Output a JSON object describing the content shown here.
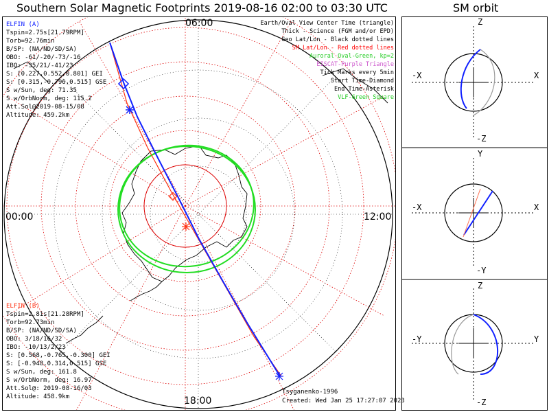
{
  "title": "Southern Solar Magnetic Footprints 2019-08-16 02:00 to 03:30 UTC",
  "orbit_title": "SM orbit",
  "hour_labels": {
    "top": "06:00",
    "left": "00:00",
    "right": "12:00",
    "bottom": "18:00"
  },
  "probe_a": {
    "header": "ELFIN (A)",
    "lines": [
      "Tspin=2.75s[21.79RPM]",
      "Torb=92.76min",
      "B/SP: (NA/ND/SD/SA)",
      "OBO: -61/-20/-73/-16",
      "IBO: -35/21/-41/23",
      "S: [0.227,0.552,0.801] GEI",
      "S: [0.315,-0.796,0.515] GSE",
      "S w/Sun, deg: 71.35",
      "S w/OrbNorm, deg: 115.2",
      "Att.Sol@2019-08-15/08",
      "Altitude: 459.2km"
    ]
  },
  "probe_b": {
    "header": "ELFIN (B)",
    "lines": [
      "Tspin=2.81s[21.28RPM]",
      "Torb=92.73min",
      "B/SP: (NA/ND/SD/SA)",
      "OBO: 3/18/16/32",
      "IBO: -10/13/2/23",
      "S: [0.568,-0.765,-0.300] GEI",
      "S: [-0.948,0.314,0.515] GSE",
      "S w/Sun, deg: 161.8",
      "S w/OrbNorm, deg: 16.97",
      "Att.Sol@: 2019-08-16/03",
      "Altitude: 458.9km"
    ]
  },
  "legend": [
    {
      "text": "Earth/Oval View Center Time (triangle)",
      "color": "#000000"
    },
    {
      "text": "Thick - Science (FGM and/or EPD)",
      "color": "#000000"
    },
    {
      "text": "Geo Lat/Lon - Black dotted lines",
      "color": "#000000"
    },
    {
      "text": "SM Lat/Lon - Red dotted lines",
      "color": "#ff0000"
    },
    {
      "text": "Auroral Oval-Green, kp=2",
      "color": "#22cc22"
    },
    {
      "text": "EISCAT-Purple Triangle",
      "color": "#cc55cc"
    },
    {
      "text": "Tick Marks every 5min",
      "color": "#000000"
    },
    {
      "text": "Start Time-Diamond",
      "color": "#000000"
    },
    {
      "text": "End Time-Asterisk",
      "color": "#000000"
    },
    {
      "text": "VLF-Green Square",
      "color": "#22cc22"
    }
  ],
  "credits": {
    "model": "Tsyganenko-1996",
    "created": "Created: Wed Jan 25 17:27:07 2023"
  },
  "colors": {
    "probe_a": "#1020ff",
    "probe_b": "#ff3010",
    "oval": "#22dd22",
    "grid": "#dd0000",
    "coast": "#000000"
  },
  "orbit_panels": [
    {
      "top": "Z",
      "bottom": "-Z",
      "left": "-X",
      "right": "X"
    },
    {
      "top": "Y",
      "bottom": "-Y",
      "left": "-X",
      "right": "X"
    },
    {
      "top": "Z",
      "bottom": "-Z",
      "left": "-Y",
      "right": "Y"
    }
  ],
  "chart_data": {
    "type": "polar map",
    "projection": "southern polar, magnetic local time",
    "time_range": [
      "2019-08-16 02:00",
      "2019-08-16 03:30"
    ],
    "auroral_oval_kp": 2,
    "tick_interval_min": 5
  }
}
